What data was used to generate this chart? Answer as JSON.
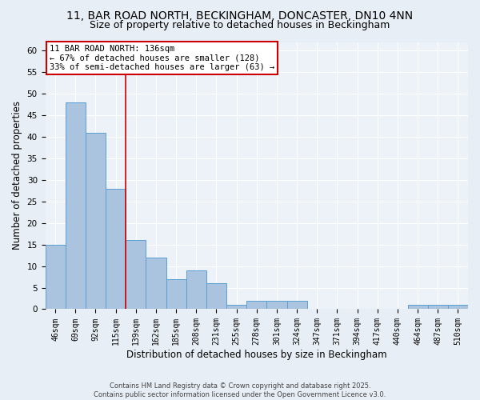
{
  "title1": "11, BAR ROAD NORTH, BECKINGHAM, DONCASTER, DN10 4NN",
  "title2": "Size of property relative to detached houses in Beckingham",
  "xlabel": "Distribution of detached houses by size in Beckingham",
  "ylabel": "Number of detached properties",
  "categories": [
    "46sqm",
    "69sqm",
    "92sqm",
    "115sqm",
    "139sqm",
    "162sqm",
    "185sqm",
    "208sqm",
    "231sqm",
    "255sqm",
    "278sqm",
    "301sqm",
    "324sqm",
    "347sqm",
    "371sqm",
    "394sqm",
    "417sqm",
    "440sqm",
    "464sqm",
    "487sqm",
    "510sqm"
  ],
  "values": [
    15,
    48,
    41,
    28,
    16,
    12,
    7,
    9,
    6,
    1,
    2,
    2,
    2,
    0,
    0,
    0,
    0,
    0,
    1,
    1,
    1
  ],
  "bar_color": "#aac4e0",
  "bar_edge_color": "#5a9fd4",
  "property_line_index": 3.5,
  "annotation_text": "11 BAR ROAD NORTH: 136sqm\n← 67% of detached houses are smaller (128)\n33% of semi-detached houses are larger (63) →",
  "annotation_box_color": "#ffffff",
  "annotation_box_edge_color": "#cc0000",
  "line_color": "#cc0000",
  "ylim": [
    0,
    62
  ],
  "yticks": [
    0,
    5,
    10,
    15,
    20,
    25,
    30,
    35,
    40,
    45,
    50,
    55,
    60
  ],
  "bg_color": "#e8eef5",
  "plot_bg_color": "#edf2f8",
  "grid_color": "#ffffff",
  "footer_text": "Contains HM Land Registry data © Crown copyright and database right 2025.\nContains public sector information licensed under the Open Government Licence v3.0.",
  "title_fontsize": 10,
  "subtitle_fontsize": 9,
  "tick_fontsize": 7,
  "xlabel_fontsize": 8.5,
  "ylabel_fontsize": 8.5
}
